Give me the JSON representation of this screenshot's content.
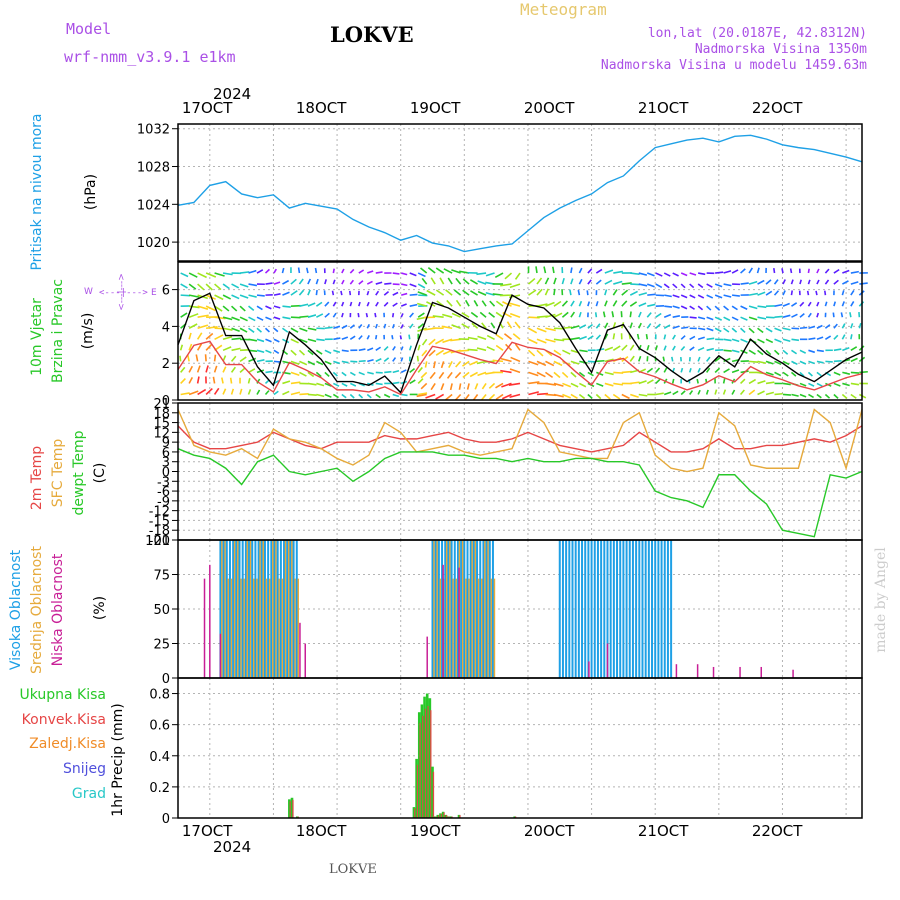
{
  "header": {
    "model_label": "Model",
    "model_name": "wrf-nmm_v3.9.1 e1km",
    "title": "LOKVE",
    "meteogram": "Meteogram",
    "lonlat": "lon,lat (20.0187E, 42.8312N)",
    "altitude": "Nadmorska Visina 1350m",
    "model_altitude": "Nadmorska Visina u modelu 1459.63m",
    "year": "2024",
    "footer_title": "LOKVE",
    "credit": "made by Angel"
  },
  "colors": {
    "pressure": "#1ea0e6",
    "temp2m": "#e64646",
    "sfc": "#e6aa3c",
    "dew": "#28c828",
    "high_cloud": "#1ea0e6",
    "mid_cloud": "#e6aa3c",
    "low_cloud": "#c81e96",
    "total_precip": "#28c828",
    "conv_precip": "#e64646",
    "freezing_precip": "#f08c28",
    "snow": "#5050dc",
    "hail": "#28c8c8"
  },
  "dates": [
    "17OCT",
    "18OCT",
    "19OCT",
    "20OCT",
    "21OCT",
    "22OCT"
  ],
  "panels": {
    "pressure": {
      "label": "Pritisak na nivou mora",
      "unit": "(hPa)"
    },
    "wind": {
      "label1": "10m Vjetar",
      "label2": "Brzina i Pravac",
      "unit": "(m/s)",
      "compass": {
        "w": "W",
        "e": "E",
        "arrow": "<---|--->",
        "n": "N",
        "s": "S"
      }
    },
    "temp": {
      "label1": "2m Temp",
      "label2": "SFC Temp",
      "label3": "dewpt Temp",
      "unit": "(C)"
    },
    "cloud": {
      "label1": "Visoka Oblacnost",
      "label2": "Srednja Oblacnost",
      "label3": "Niska Oblacnost",
      "unit": "(%)"
    },
    "precip": {
      "label": "1hr Precip (mm)",
      "legend": [
        "Ukupna Kisa",
        "Konvek.Kisa",
        "Zaledj.Kisa",
        "Snijeg",
        "Grad"
      ]
    }
  },
  "chart_data": [
    {
      "type": "line",
      "title": "",
      "ylabel": "Pritisak na nivou mora (hPa)",
      "ylim": [
        1018,
        1032.5
      ],
      "yticks": [
        1020,
        1024,
        1028,
        1032
      ],
      "x": [
        0,
        6,
        12,
        18,
        24,
        30,
        36,
        42,
        48,
        54,
        60,
        66,
        72,
        78,
        84,
        90,
        96,
        102,
        108,
        114,
        120,
        126,
        132,
        138,
        144,
        150,
        156,
        162,
        168,
        174,
        180,
        186,
        192,
        198,
        204,
        210,
        216,
        222,
        228,
        234,
        240,
        246,
        252,
        258
      ],
      "series": [
        {
          "values": [
            1023.9,
            1024.2,
            1026.0,
            1026.4,
            1025.1,
            1024.7,
            1025.0,
            1023.6,
            1024.1,
            1023.8,
            1023.5,
            1022.4,
            1021.6,
            1021.0,
            1020.2,
            1020.7,
            1019.9,
            1019.6,
            1019.0,
            1019.3,
            1019.6,
            1019.8,
            1021.2,
            1022.6,
            1023.6,
            1024.4,
            1025.1,
            1026.3,
            1027.0,
            1028.6,
            1030.0,
            1030.4,
            1030.8,
            1031.0,
            1030.6,
            1031.2,
            1031.3,
            1030.9,
            1030.3,
            1030.0,
            1029.8,
            1029.4,
            1029.0,
            1028.5
          ]
        }
      ]
    },
    {
      "type": "line",
      "title": "",
      "ylabel": "10m Vjetar Brzina i Pravac (m/s)",
      "ylim": [
        0,
        7.5
      ],
      "yticks": [
        0,
        2,
        4,
        6
      ],
      "x": [
        0,
        6,
        12,
        18,
        24,
        30,
        36,
        42,
        48,
        54,
        60,
        66,
        72,
        78,
        84,
        90,
        96,
        102,
        108,
        114,
        120,
        126,
        132,
        138,
        144,
        150,
        156,
        162,
        168,
        174,
        180,
        186,
        192,
        198,
        204,
        210,
        216,
        222,
        228,
        234,
        240,
        246,
        252,
        258
      ],
      "series": [
        {
          "values": [
            3.0,
            5.4,
            5.8,
            3.5,
            3.5,
            1.8,
            0.8,
            3.7,
            3.0,
            2.2,
            1.0,
            1.0,
            0.8,
            1.3,
            0.4,
            3.0,
            5.3,
            5.0,
            4.5,
            4.0,
            3.6,
            5.7,
            5.2,
            5.0,
            4.2,
            2.8,
            1.5,
            3.8,
            4.1,
            2.8,
            2.3,
            1.6,
            1.0,
            1.5,
            2.4,
            1.8,
            3.3,
            2.5,
            2.0,
            1.4,
            1.0,
            1.6,
            2.2,
            2.6
          ]
        }
      ]
    },
    {
      "type": "line",
      "title": "",
      "ylabel": "Temp (C)",
      "ylim": [
        -21,
        21
      ],
      "yticks": [
        21,
        18,
        15,
        12,
        9,
        6,
        3,
        0,
        -3,
        -6,
        -9,
        -12,
        -15,
        -18,
        -21
      ],
      "x": [
        0,
        6,
        12,
        18,
        24,
        30,
        36,
        42,
        48,
        54,
        60,
        66,
        72,
        78,
        84,
        90,
        96,
        102,
        108,
        114,
        120,
        126,
        132,
        138,
        144,
        150,
        156,
        162,
        168,
        174,
        180,
        186,
        192,
        198,
        204,
        210,
        216,
        222,
        228,
        234,
        240,
        246,
        252,
        258
      ],
      "series": [
        {
          "name": "2m Temp",
          "values": [
            14,
            9,
            7,
            7,
            8,
            9,
            12,
            10,
            8,
            7,
            9,
            9,
            9,
            11,
            10,
            10,
            11,
            12,
            10,
            9,
            9,
            10,
            12,
            10,
            8,
            7,
            6,
            7,
            8,
            12,
            9,
            6,
            6,
            7,
            10,
            7,
            7,
            8,
            8,
            9,
            10,
            9,
            11,
            14
          ]
        },
        {
          "name": "SFC Temp",
          "values": [
            19,
            8,
            6,
            5,
            7,
            4,
            13,
            10,
            9,
            7,
            4,
            2,
            5,
            15,
            12,
            6,
            7,
            8,
            6,
            5,
            6,
            7,
            19,
            15,
            6,
            5,
            4,
            4,
            15,
            18,
            5,
            1,
            0,
            1,
            18,
            14,
            2,
            1,
            1,
            1,
            19,
            15,
            1,
            19
          ]
        },
        {
          "name": "dewpt Temp",
          "values": [
            7,
            5,
            4,
            1,
            -4,
            3,
            5,
            0,
            -1,
            0,
            1,
            -3,
            0,
            4,
            6,
            6,
            6,
            5,
            5,
            4,
            4,
            3,
            4,
            3,
            3,
            4,
            4,
            3,
            3,
            2,
            -6,
            -8,
            -9,
            -11,
            -1,
            -1,
            -6,
            -10,
            -18,
            -19,
            -20,
            -1,
            -2,
            0
          ]
        }
      ]
    },
    {
      "type": "bar",
      "title": "",
      "ylabel": "Oblacnost (%)",
      "ylim": [
        0,
        100
      ],
      "yticks": [
        0,
        25,
        50,
        75,
        100
      ],
      "series": [
        {
          "name": "Visoka Oblacnost",
          "coverage": "100% in x ranges [12,46] [96,120] [144,186]"
        },
        {
          "name": "Srednja Oblacnost",
          "coverage": "100% in x ranges [12,46] [96,120] [144,186]"
        },
        {
          "name": "Niska Oblacnost",
          "coverage": "spikes up to 80% near x 6-12, ~10% after x 186"
        }
      ]
    },
    {
      "type": "bar",
      "title": "",
      "ylabel": "1hr Precip (mm)",
      "ylim": [
        0,
        0.9
      ],
      "yticks": [
        0,
        0.2,
        0.4,
        0.6,
        0.8
      ],
      "x": [
        42,
        43,
        45,
        89,
        90,
        91,
        92,
        93,
        94,
        95,
        96,
        97,
        98,
        99,
        100,
        101,
        102,
        103,
        106,
        127
      ],
      "series": [
        {
          "name": "Ukupna Kisa",
          "values": [
            0.12,
            0.13,
            0.01,
            0.07,
            0.38,
            0.68,
            0.73,
            0.78,
            0.8,
            0.77,
            0.33,
            0.01,
            0.02,
            0.03,
            0.04,
            0.02,
            0.01,
            0.01,
            0.02,
            0.01
          ]
        }
      ]
    }
  ]
}
